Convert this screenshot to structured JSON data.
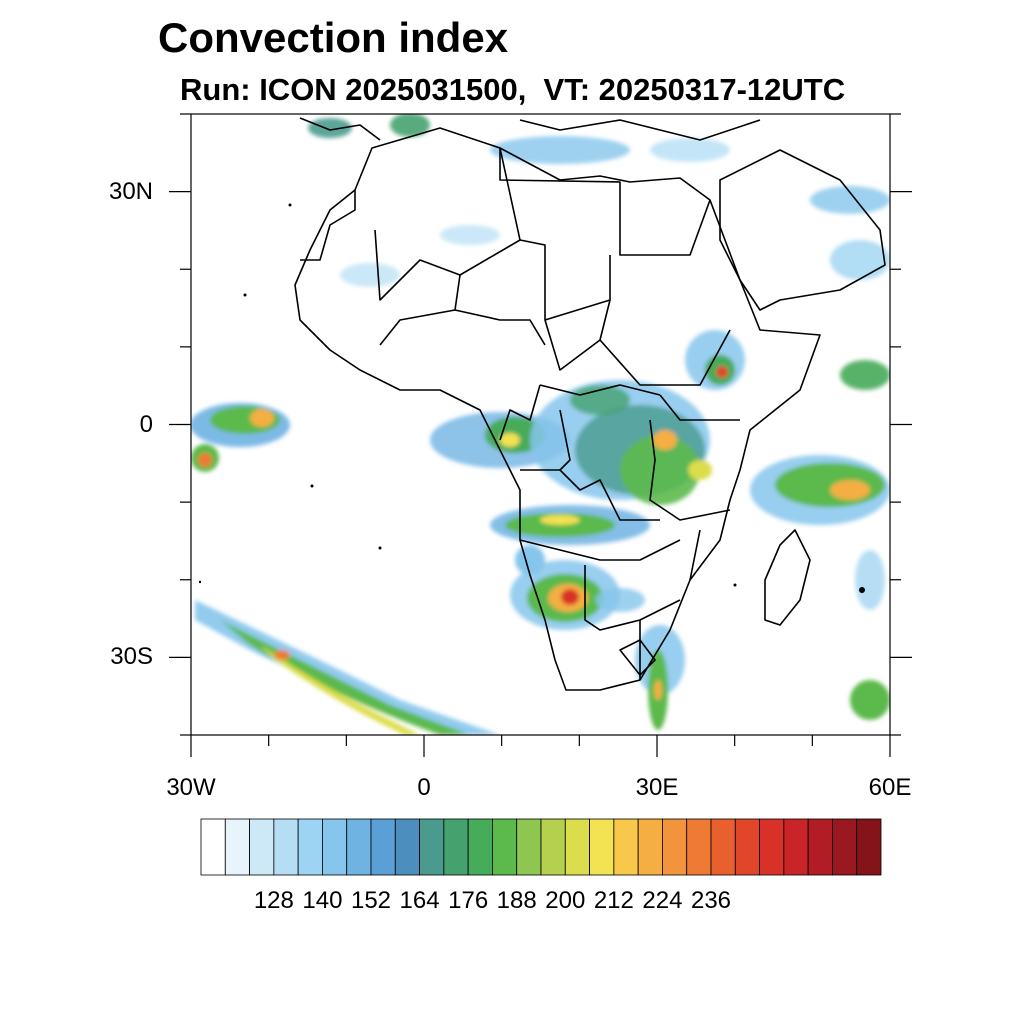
{
  "header": {
    "title": "Convection index",
    "subtitle": "Run: ICON 2025031500,  VT: 20250317-12UTC"
  },
  "axes": {
    "lat_labels": [
      {
        "text": "30N",
        "lat": 30
      },
      {
        "text": "0",
        "lat": 0
      },
      {
        "text": "30S",
        "lat": -30
      }
    ],
    "lon_labels": [
      {
        "text": "30W",
        "lon": -30
      },
      {
        "text": "0",
        "lon": 0
      },
      {
        "text": "30E",
        "lon": 30
      },
      {
        "text": "60E",
        "lon": 60
      }
    ],
    "lon_range": [
      -30,
      60
    ],
    "lat_range": [
      -40,
      40
    ]
  },
  "colorbar": {
    "colors": [
      "#ffffff",
      "#e8f4fc",
      "#cde9f7",
      "#b5def5",
      "#9dd4f3",
      "#86c5ec",
      "#6fb3e3",
      "#5a9fd6",
      "#4c8fbe",
      "#4a9b8e",
      "#45a26f",
      "#46ab5a",
      "#5cb94c",
      "#8dc650",
      "#b4d04e",
      "#dcdd4c",
      "#f3e251",
      "#f7c84a",
      "#f5ae42",
      "#f2943b",
      "#ee7a33",
      "#e8602e",
      "#e1452a",
      "#d83128",
      "#c92428",
      "#b21c25",
      "#9a1820",
      "#841419"
    ],
    "labels": [
      "128",
      "140",
      "152",
      "164",
      "176",
      "188",
      "200",
      "212",
      "224",
      "236"
    ]
  }
}
